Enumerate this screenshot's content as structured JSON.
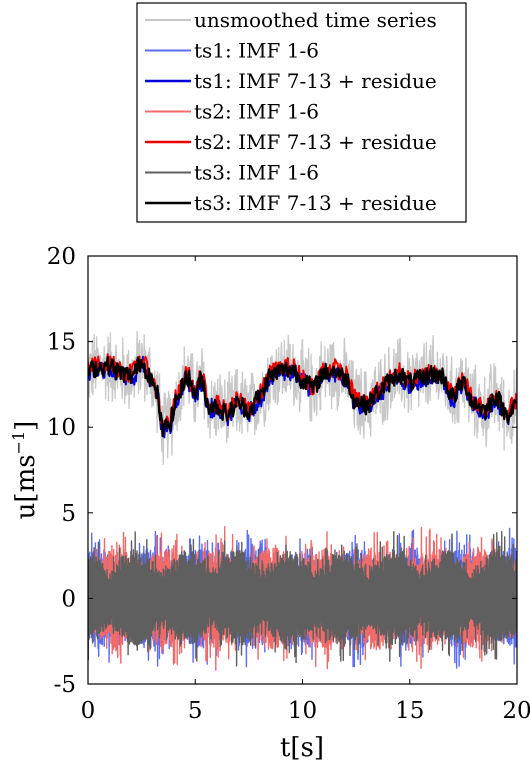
{
  "chart_data": {
    "type": "line",
    "xlabel": "t[s]",
    "ylabel": "u[ms",
    "ylabel_unit_sup": "−1",
    "ylabel_close": "]",
    "xlim": [
      0,
      20
    ],
    "ylim": [
      -5,
      20
    ],
    "x_ticks": [
      0,
      5,
      10,
      15,
      20
    ],
    "y_ticks": [
      -5,
      0,
      5,
      10,
      15,
      20
    ],
    "x_tick_labels": [
      "0",
      "5",
      "10",
      "15",
      "20"
    ],
    "y_tick_labels": [
      "-5",
      "0",
      "5",
      "10",
      "15",
      "20"
    ],
    "grid": false,
    "legend_position": "top-center, outside plot",
    "smooth_knots": {
      "t": [
        0,
        0.5,
        1,
        1.5,
        2,
        2.5,
        2.8,
        3.2,
        3.5,
        3.8,
        4.2,
        4.6,
        5,
        5.3,
        5.6,
        6,
        6.5,
        7,
        7.5,
        8,
        8.5,
        9,
        9.5,
        10,
        10.5,
        11,
        11.5,
        12,
        12.5,
        13,
        13.5,
        14,
        14.5,
        15,
        15.5,
        16,
        16.5,
        17,
        17.5,
        18,
        18.5,
        19,
        19.5,
        20
      ],
      "u": [
        13.3,
        13.5,
        13.6,
        13.2,
        13.0,
        13.8,
        13.2,
        12.0,
        9.8,
        10.3,
        11.8,
        13.0,
        12.0,
        12.8,
        11.3,
        11.2,
        10.8,
        11.4,
        11.0,
        11.8,
        13.0,
        13.3,
        13.4,
        12.8,
        12.3,
        13.2,
        13.3,
        12.9,
        11.5,
        11.3,
        12.0,
        12.6,
        13.1,
        12.6,
        12.8,
        13.1,
        13.0,
        11.8,
        12.6,
        11.4,
        11.0,
        11.8,
        10.8,
        11.3
      ]
    },
    "series": [
      {
        "name": "unsmoothed time series",
        "color": "#c8c8c8",
        "kind": "raw",
        "center": "smooth_knots",
        "amplitude": 2.5
      },
      {
        "name": "ts1: IMF 1-6",
        "color": "#5b6cf0",
        "kind": "imf",
        "amplitude": 4.2
      },
      {
        "name": "ts1: IMF 7-13 + residue",
        "color": "#0000d8",
        "kind": "residue",
        "offset": -0.15
      },
      {
        "name": "ts2: IMF 1-6",
        "color": "#f06a6a",
        "kind": "imf",
        "amplitude": 4.3
      },
      {
        "name": "ts2: IMF 7-13 + residue",
        "color": "#ee0000",
        "kind": "residue",
        "offset": 0.15
      },
      {
        "name": "ts3: IMF 1-6",
        "color": "#5f5f5f",
        "kind": "imf",
        "amplitude": 4.0
      },
      {
        "name": "ts3: IMF 7-13 + residue",
        "color": "#000000",
        "kind": "residue",
        "offset": 0.0
      }
    ]
  }
}
